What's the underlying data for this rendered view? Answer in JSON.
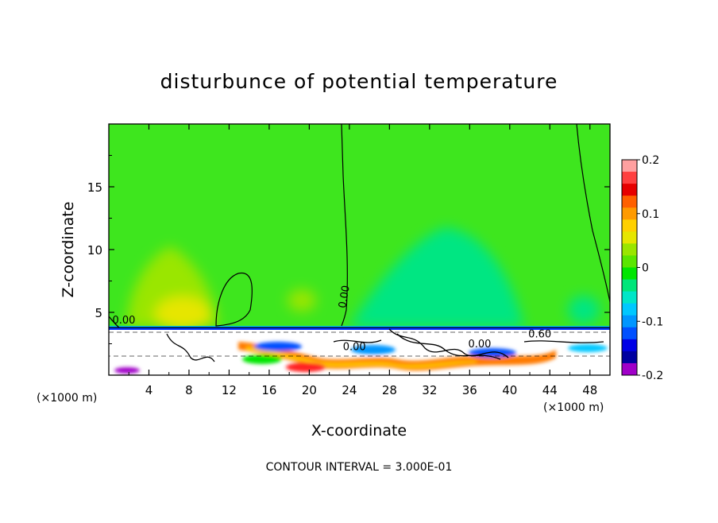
{
  "chart_data": {
    "type": "heatmap",
    "title": "disturbunce of potential temperature",
    "xlabel": "X-coordinate",
    "ylabel": "Z-coordinate",
    "x_unit_left": "(×1000 m)",
    "x_unit_right": "(×1000 m)",
    "xlim": [
      0,
      50
    ],
    "ylim": [
      0,
      20
    ],
    "x_ticks": [
      4,
      8,
      12,
      16,
      20,
      24,
      28,
      32,
      36,
      40,
      44,
      48
    ],
    "y_ticks": [
      5,
      10,
      15
    ],
    "footer": "CONTOUR INTERVAL = 3.000E-01",
    "colorbar": {
      "range": [
        -0.2,
        0.2
      ],
      "tick_values": [
        0.2,
        0.1,
        0,
        -0.1,
        -0.2
      ],
      "tick_labels": [
        "0.2",
        "0.1",
        "0",
        "-0.1",
        "-0.2"
      ],
      "colors": [
        "#ffa0a0",
        "#ff4040",
        "#e60000",
        "#ff6000",
        "#ff9a00",
        "#ffd000",
        "#e6e600",
        "#9ae600",
        "#5ae600",
        "#00e600",
        "#00e67a",
        "#00e6c8",
        "#00c8ff",
        "#0096ff",
        "#0050ff",
        "#0000e6",
        "#0000a0",
        "#a000c8"
      ]
    },
    "contour_labels": [
      {
        "text": "0.00",
        "x": 1.5,
        "y": 4.1
      },
      {
        "text": "0.00",
        "x": 23.8,
        "y": 6.2
      },
      {
        "text": "0.00",
        "x": 24.5,
        "y": 2.0
      },
      {
        "text": "0.00",
        "x": 37.0,
        "y": 2.2
      },
      {
        "text": "0.60",
        "x": 43.0,
        "y": 3.0
      }
    ]
  }
}
